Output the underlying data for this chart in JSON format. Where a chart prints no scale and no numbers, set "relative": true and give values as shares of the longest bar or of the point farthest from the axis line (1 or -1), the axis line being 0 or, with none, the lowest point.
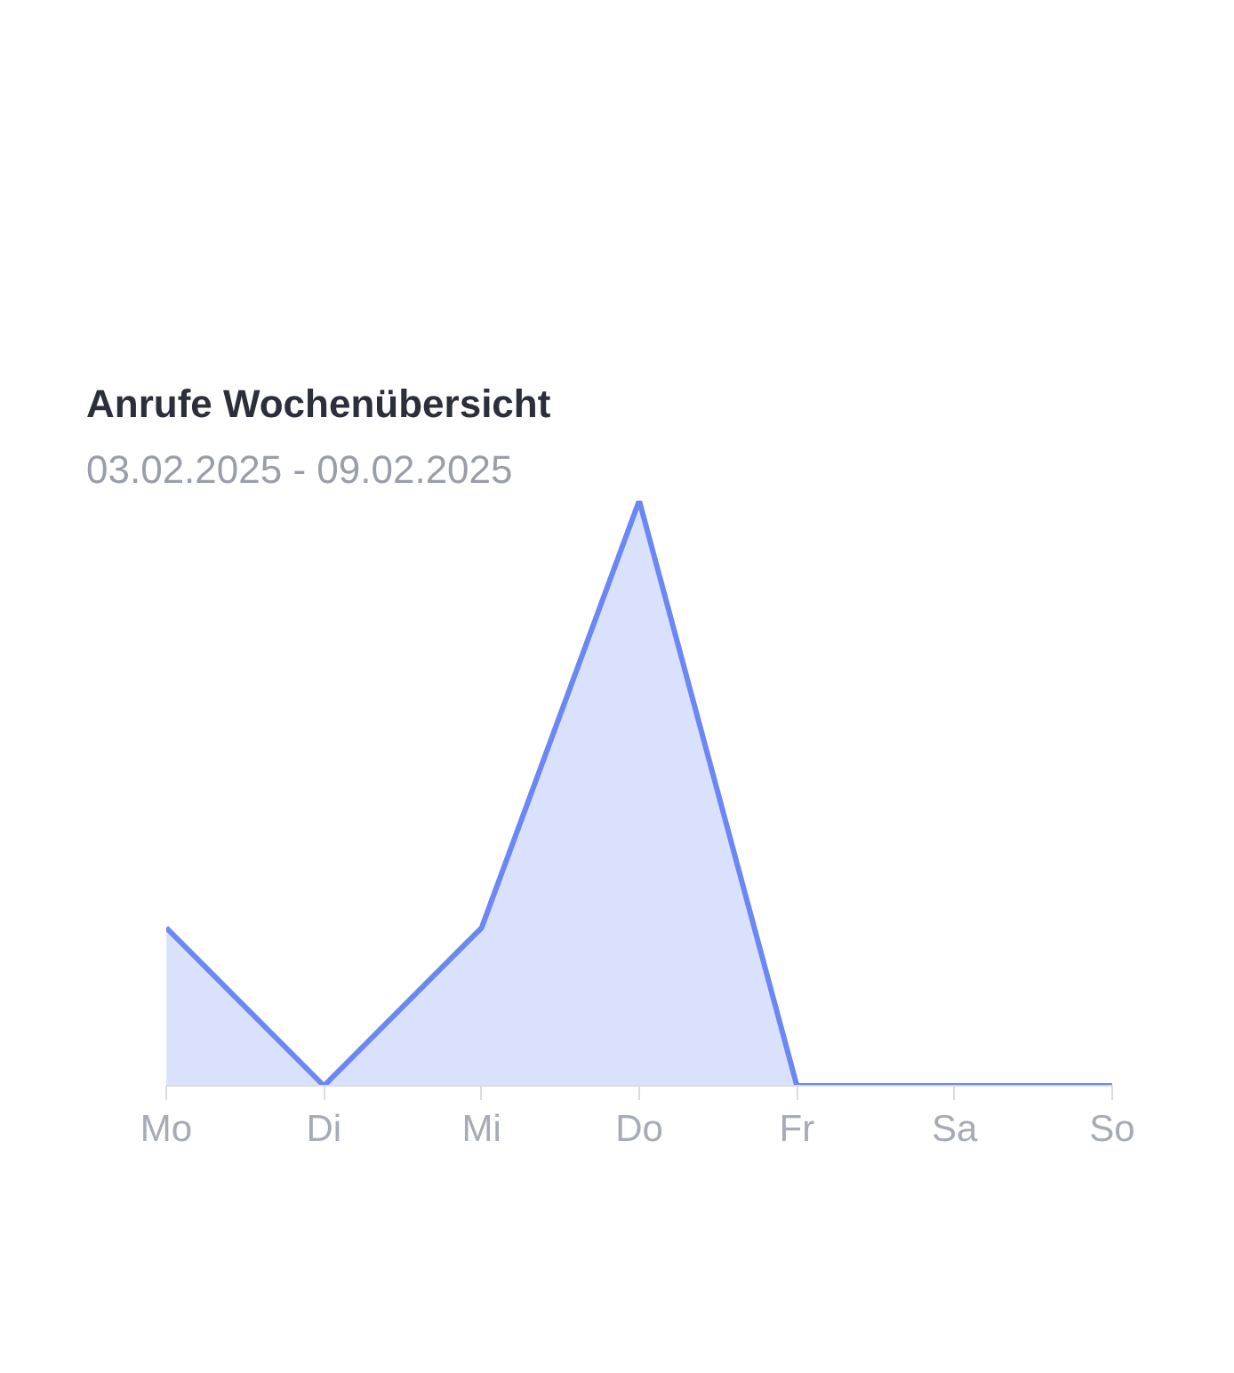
{
  "chart_data": {
    "type": "area",
    "title": "Anrufe Wochenübersicht",
    "subtitle": "03.02.2025 - 09.02.2025",
    "categories": [
      "Mo",
      "Di",
      "Mi",
      "Do",
      "Fr",
      "Sa",
      "So"
    ],
    "relative": true,
    "series": [
      {
        "color": "#6b87f5",
        "values": [
          0.27,
          0,
          0.27,
          1,
          0,
          0,
          0
        ]
      }
    ]
  }
}
